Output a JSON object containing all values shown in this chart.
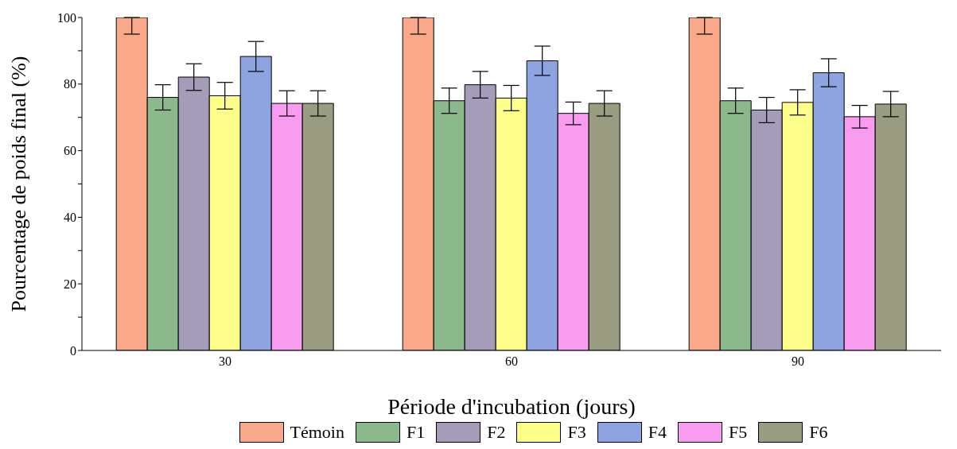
{
  "chart_data": {
    "type": "bar",
    "xlabel": "Période d'incubation (jours)",
    "ylabel": "Pourcentage de poids final (%)",
    "categories": [
      "30",
      "60",
      "90"
    ],
    "series": [
      {
        "name": "Témoin",
        "color": "#f9a98a",
        "values": [
          100,
          100,
          100
        ],
        "errors": [
          [
            95,
            100
          ],
          [
            95,
            100
          ],
          [
            95,
            100
          ]
        ]
      },
      {
        "name": "F1",
        "color": "#8bb98b",
        "values": [
          76,
          75,
          75
        ],
        "errors": [
          3.8,
          3.8,
          3.8
        ]
      },
      {
        "name": "F2",
        "color": "#a59cba",
        "values": [
          82.1,
          79.8,
          72.2
        ],
        "errors": [
          4,
          4,
          3.8
        ]
      },
      {
        "name": "F3",
        "color": "#fdfd89",
        "values": [
          76.5,
          75.8,
          74.5
        ],
        "errors": [
          4,
          3.8,
          3.8
        ]
      },
      {
        "name": "F4",
        "color": "#8ea4e0",
        "values": [
          88.3,
          87,
          83.4
        ],
        "errors": [
          4.5,
          4.4,
          4.2
        ]
      },
      {
        "name": "F5",
        "color": "#f99cef",
        "values": [
          74.2,
          71.2,
          70.2
        ],
        "errors": [
          3.8,
          3.4,
          3.4
        ]
      },
      {
        "name": "F6",
        "color": "#9a9c82",
        "values": [
          74.2,
          74.2,
          74
        ],
        "errors": [
          3.8,
          3.8,
          3.8
        ]
      }
    ],
    "ylim": [
      0,
      100
    ],
    "yticks": [
      0,
      {
        "value": 10,
        "label": null
      },
      20,
      {
        "value": 30,
        "label": null
      },
      40,
      {
        "value": 50,
        "label": null
      },
      60,
      {
        "value": 70,
        "label": null
      },
      80,
      {
        "value": 90,
        "label": null
      },
      100
    ],
    "grid": false,
    "legend": "bottom"
  }
}
